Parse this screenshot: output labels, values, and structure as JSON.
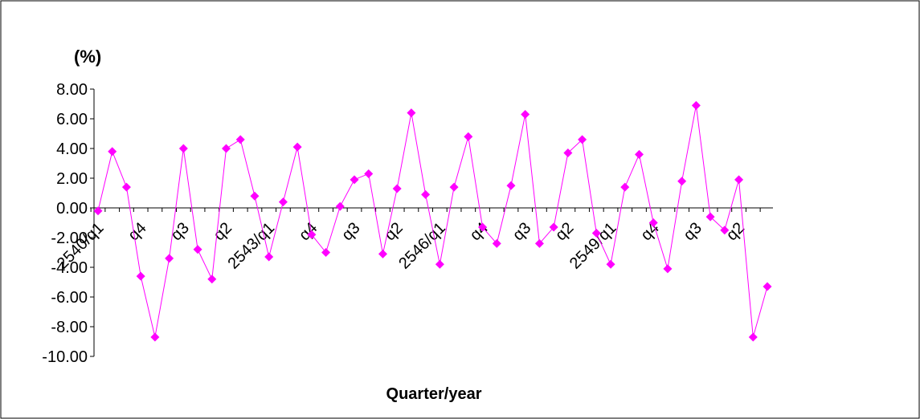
{
  "chart_data": {
    "type": "line",
    "y_axis_label": "(%)",
    "x_axis_label": "Quarter/year",
    "categories": [
      "2540/q1",
      null,
      null,
      "q4",
      null,
      null,
      "q3",
      null,
      null,
      "q2",
      null,
      null,
      "2543/q1",
      null,
      null,
      "q4",
      null,
      null,
      "q3",
      null,
      null,
      "q2",
      null,
      null,
      "2546/q1",
      null,
      null,
      "q4",
      null,
      null,
      "q3",
      null,
      null,
      "q2",
      null,
      null,
      "2549/q1",
      null,
      null,
      "q4",
      null,
      null,
      "q3",
      null,
      null,
      "q2",
      null,
      null
    ],
    "series": [
      {
        "color": "#ff00ff",
        "values": [
          -0.2,
          3.8,
          1.4,
          -4.6,
          -8.7,
          -3.4,
          4.0,
          -2.8,
          -4.8,
          4.0,
          4.6,
          0.8,
          -3.3,
          0.4,
          4.1,
          -1.8,
          -3.0,
          0.1,
          1.9,
          2.3,
          -3.1,
          1.3,
          6.4,
          0.9,
          -3.8,
          1.4,
          4.8,
          -1.3,
          -2.4,
          1.5,
          6.3,
          -2.4,
          -1.3,
          3.7,
          4.6,
          -1.7,
          -3.8,
          1.4,
          3.6,
          -1.0,
          -4.1,
          1.8,
          6.9,
          -0.6,
          -1.5,
          1.9,
          -8.7,
          -5.3
        ]
      }
    ],
    "ylim": [
      -10,
      8
    ],
    "yticks": [
      {
        "value": -10,
        "label": "-10.00"
      },
      {
        "value": -8,
        "label": "-8.00"
      },
      {
        "value": -6,
        "label": "-6.00"
      },
      {
        "value": -4,
        "label": "-4.00"
      },
      {
        "value": -2,
        "label": "-2.00"
      },
      {
        "value": 0,
        "label": "0.00"
      },
      {
        "value": 2,
        "label": "2.00"
      },
      {
        "value": 4,
        "label": "4.00"
      },
      {
        "value": 6,
        "label": "6.00"
      },
      {
        "value": 8,
        "label": "8.00"
      }
    ]
  }
}
